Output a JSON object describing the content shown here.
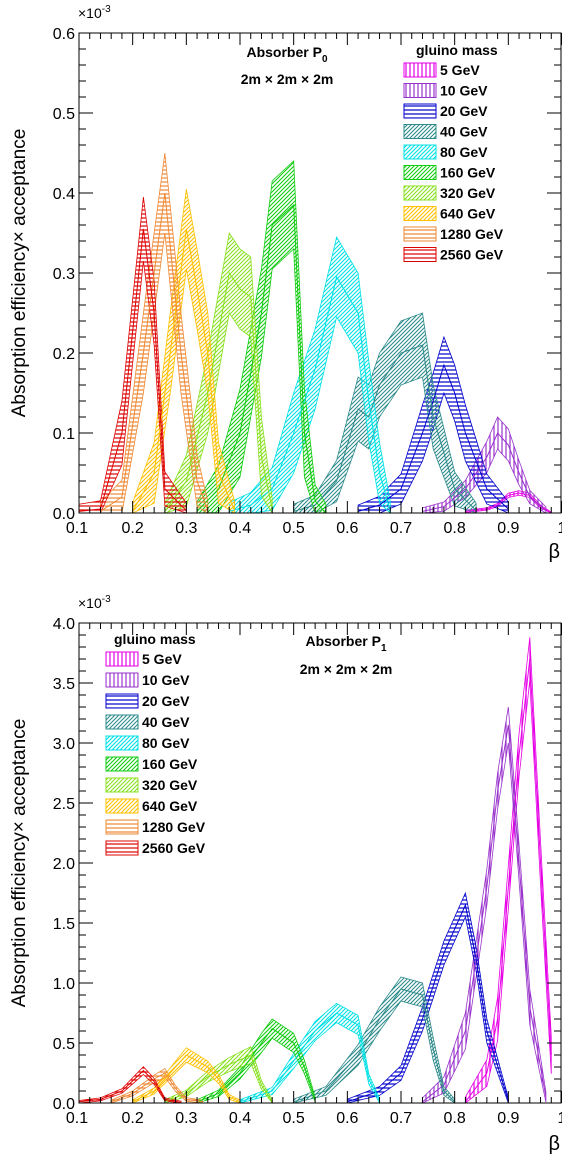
{
  "chart_data": [
    {
      "type": "area",
      "title": "Absorber P0",
      "title_main": "Absorber P",
      "title_sub": "0",
      "subtitle": "2m × 2m × 2m",
      "xlabel": "β",
      "ylabel": "Absorption efficiency× acceptance",
      "y_exponent": "×10",
      "y_exponent_power": "-3",
      "xlim": [
        0.1,
        1.0
      ],
      "ylim": [
        0.0,
        0.6
      ],
      "x_ticks": [
        "0.1",
        "0.2",
        "0.3",
        "0.4",
        "0.5",
        "0.6",
        "0.7",
        "0.8",
        "0.9",
        "1"
      ],
      "y_ticks": [
        "0.0",
        "0.1",
        "0.2",
        "0.3",
        "0.4",
        "0.5",
        "0.6"
      ],
      "legend_title": "gluino mass",
      "legend_position": "top-right",
      "series": [
        {
          "name": "5 GeV",
          "color": "#e600e6",
          "pattern": "vertical",
          "points": [
            [
              0.82,
              0.002
            ],
            [
              0.86,
              0.005
            ],
            [
              0.88,
              0.01
            ],
            [
              0.9,
              0.022
            ],
            [
              0.92,
              0.025
            ],
            [
              0.94,
              0.022
            ],
            [
              0.96,
              0.008
            ],
            [
              0.98,
              0.0
            ]
          ],
          "band": 0.006
        },
        {
          "name": "10 GeV",
          "color": "#9933cc",
          "pattern": "vertical",
          "points": [
            [
              0.74,
              0.002
            ],
            [
              0.78,
              0.008
            ],
            [
              0.82,
              0.03
            ],
            [
              0.86,
              0.07
            ],
            [
              0.88,
              0.1
            ],
            [
              0.9,
              0.085
            ],
            [
              0.92,
              0.05
            ],
            [
              0.94,
              0.02
            ],
            [
              0.97,
              0.003
            ]
          ],
          "band": 0.02
        },
        {
          "name": "20 GeV",
          "color": "#0000cc",
          "pattern": "horizontal",
          "points": [
            [
              0.62,
              0.002
            ],
            [
              0.66,
              0.01
            ],
            [
              0.7,
              0.03
            ],
            [
              0.74,
              0.1
            ],
            [
              0.76,
              0.14
            ],
            [
              0.78,
              0.185
            ],
            [
              0.8,
              0.15
            ],
            [
              0.82,
              0.1
            ],
            [
              0.86,
              0.03
            ],
            [
              0.9,
              0.005
            ]
          ],
          "band": 0.035
        },
        {
          "name": "40 GeV",
          "color": "#2e8b8b",
          "pattern": "diagonal",
          "points": [
            [
              0.5,
              0.002
            ],
            [
              0.54,
              0.01
            ],
            [
              0.58,
              0.04
            ],
            [
              0.62,
              0.13
            ],
            [
              0.64,
              0.12
            ],
            [
              0.66,
              0.16
            ],
            [
              0.7,
              0.2
            ],
            [
              0.74,
              0.21
            ],
            [
              0.76,
              0.12
            ],
            [
              0.8,
              0.03
            ],
            [
              0.84,
              0.003
            ]
          ],
          "band": 0.04
        },
        {
          "name": "80 GeV",
          "color": "#00e0e6",
          "pattern": "diagonal",
          "points": [
            [
              0.38,
              0.002
            ],
            [
              0.42,
              0.01
            ],
            [
              0.46,
              0.03
            ],
            [
              0.5,
              0.1
            ],
            [
              0.54,
              0.18
            ],
            [
              0.58,
              0.295
            ],
            [
              0.62,
              0.25
            ],
            [
              0.64,
              0.14
            ],
            [
              0.66,
              0.05
            ],
            [
              0.68,
              0.003
            ]
          ],
          "band": 0.05
        },
        {
          "name": "160 GeV",
          "color": "#11cc11",
          "pattern": "diagonal",
          "points": [
            [
              0.32,
              0.002
            ],
            [
              0.36,
              0.03
            ],
            [
              0.4,
              0.1
            ],
            [
              0.44,
              0.25
            ],
            [
              0.46,
              0.36
            ],
            [
              0.5,
              0.385
            ],
            [
              0.52,
              0.1
            ],
            [
              0.54,
              0.015
            ],
            [
              0.56,
              0.0
            ]
          ],
          "band": 0.055
        },
        {
          "name": "320 GeV",
          "color": "#88e020",
          "pattern": "diagonal",
          "points": [
            [
              0.26,
              0.002
            ],
            [
              0.3,
              0.04
            ],
            [
              0.34,
              0.15
            ],
            [
              0.38,
              0.3
            ],
            [
              0.4,
              0.28
            ],
            [
              0.42,
              0.27
            ],
            [
              0.44,
              0.07
            ],
            [
              0.46,
              0.005
            ]
          ],
          "band": 0.05
        },
        {
          "name": "640 GeV",
          "color": "#ffc000",
          "pattern": "diagonal",
          "points": [
            [
              0.2,
              0.002
            ],
            [
              0.24,
              0.05
            ],
            [
              0.27,
              0.2
            ],
            [
              0.3,
              0.355
            ],
            [
              0.32,
              0.28
            ],
            [
              0.34,
              0.2
            ],
            [
              0.36,
              0.05
            ],
            [
              0.39,
              0.003
            ]
          ],
          "band": 0.05
        },
        {
          "name": "1280 GeV",
          "color": "#ee8833",
          "pattern": "horizontal",
          "points": [
            [
              0.14,
              0.002
            ],
            [
              0.18,
              0.02
            ],
            [
              0.22,
              0.2
            ],
            [
              0.26,
              0.4
            ],
            [
              0.29,
              0.2
            ],
            [
              0.32,
              0.04
            ],
            [
              0.34,
              0.003
            ]
          ],
          "band": 0.05
        },
        {
          "name": "2560 GeV",
          "color": "#dd0000",
          "pattern": "horizontal",
          "points": [
            [
              0.1,
              0.002
            ],
            [
              0.14,
              0.005
            ],
            [
              0.18,
              0.1
            ],
            [
              0.22,
              0.355
            ],
            [
              0.24,
              0.25
            ],
            [
              0.26,
              0.03
            ],
            [
              0.3,
              0.003
            ]
          ],
          "band": 0.04
        }
      ]
    },
    {
      "type": "area",
      "title": "Absorber P1",
      "title_main": "Absorber P",
      "title_sub": "1",
      "subtitle": "2m × 2m × 2m",
      "xlabel": "β",
      "ylabel": "Absorption efficiency× acceptance",
      "y_exponent": "×10",
      "y_exponent_power": "-3",
      "xlim": [
        0.1,
        1.0
      ],
      "ylim": [
        0.0,
        4.0
      ],
      "x_ticks": [
        "0.1",
        "0.2",
        "0.3",
        "0.4",
        "0.5",
        "0.6",
        "0.7",
        "0.8",
        "0.9",
        "1"
      ],
      "y_ticks": [
        "0.0",
        "0.5",
        "1.0",
        "1.5",
        "2.0",
        "2.5",
        "3.0",
        "3.5",
        "4.0"
      ],
      "legend_title": "gluino mass",
      "legend_position": "top-left",
      "series": [
        {
          "name": "5 GeV",
          "color": "#e600e6",
          "pattern": "vertical",
          "points": [
            [
              0.82,
              0.01
            ],
            [
              0.86,
              0.25
            ],
            [
              0.88,
              0.7
            ],
            [
              0.9,
              1.8
            ],
            [
              0.92,
              2.9
            ],
            [
              0.94,
              3.7
            ],
            [
              0.96,
              2.0
            ],
            [
              0.98,
              0.4
            ]
          ],
          "band": 0.18
        },
        {
          "name": "10 GeV",
          "color": "#9933cc",
          "pattern": "vertical",
          "points": [
            [
              0.74,
              0.01
            ],
            [
              0.78,
              0.15
            ],
            [
              0.82,
              0.6
            ],
            [
              0.86,
              1.8
            ],
            [
              0.88,
              2.6
            ],
            [
              0.9,
              3.15
            ],
            [
              0.92,
              2.0
            ],
            [
              0.94,
              0.8
            ],
            [
              0.97,
              0.05
            ]
          ],
          "band": 0.15
        },
        {
          "name": "20 GeV",
          "color": "#0000cc",
          "pattern": "horizontal",
          "points": [
            [
              0.6,
              0.01
            ],
            [
              0.66,
              0.1
            ],
            [
              0.7,
              0.25
            ],
            [
              0.74,
              0.7
            ],
            [
              0.78,
              1.25
            ],
            [
              0.82,
              1.65
            ],
            [
              0.84,
              1.2
            ],
            [
              0.86,
              0.6
            ],
            [
              0.9,
              0.02
            ]
          ],
          "band": 0.1
        },
        {
          "name": "40 GeV",
          "color": "#2e8b8b",
          "pattern": "diagonal",
          "points": [
            [
              0.5,
              0.01
            ],
            [
              0.56,
              0.1
            ],
            [
              0.62,
              0.4
            ],
            [
              0.66,
              0.7
            ],
            [
              0.7,
              0.95
            ],
            [
              0.74,
              0.9
            ],
            [
              0.76,
              0.45
            ],
            [
              0.78,
              0.1
            ],
            [
              0.8,
              0.01
            ]
          ],
          "band": 0.1
        },
        {
          "name": "80 GeV",
          "color": "#00e0e6",
          "pattern": "diagonal",
          "points": [
            [
              0.4,
              0.01
            ],
            [
              0.46,
              0.1
            ],
            [
              0.5,
              0.35
            ],
            [
              0.54,
              0.6
            ],
            [
              0.58,
              0.75
            ],
            [
              0.62,
              0.65
            ],
            [
              0.64,
              0.2
            ],
            [
              0.66,
              0.02
            ]
          ],
          "band": 0.08
        },
        {
          "name": "160 GeV",
          "color": "#11cc11",
          "pattern": "diagonal",
          "points": [
            [
              0.32,
              0.01
            ],
            [
              0.36,
              0.08
            ],
            [
              0.4,
              0.25
            ],
            [
              0.44,
              0.5
            ],
            [
              0.46,
              0.62
            ],
            [
              0.5,
              0.5
            ],
            [
              0.52,
              0.3
            ],
            [
              0.54,
              0.03
            ]
          ],
          "band": 0.08
        },
        {
          "name": "320 GeV",
          "color": "#88e020",
          "pattern": "diagonal",
          "points": [
            [
              0.26,
              0.01
            ],
            [
              0.3,
              0.08
            ],
            [
              0.34,
              0.22
            ],
            [
              0.38,
              0.32
            ],
            [
              0.42,
              0.4
            ],
            [
              0.44,
              0.15
            ],
            [
              0.46,
              0.01
            ]
          ],
          "band": 0.08
        },
        {
          "name": "640 GeV",
          "color": "#ffc000",
          "pattern": "diagonal",
          "points": [
            [
              0.2,
              0.01
            ],
            [
              0.24,
              0.1
            ],
            [
              0.27,
              0.25
            ],
            [
              0.3,
              0.4
            ],
            [
              0.34,
              0.3
            ],
            [
              0.36,
              0.2
            ],
            [
              0.38,
              0.05
            ],
            [
              0.4,
              0.01
            ]
          ],
          "band": 0.07
        },
        {
          "name": "1280 GeV",
          "color": "#ee8833",
          "pattern": "horizontal",
          "points": [
            [
              0.16,
              0.01
            ],
            [
              0.2,
              0.08
            ],
            [
              0.24,
              0.2
            ],
            [
              0.26,
              0.25
            ],
            [
              0.28,
              0.12
            ],
            [
              0.3,
              0.03
            ],
            [
              0.33,
              0.01
            ]
          ],
          "band": 0.06
        },
        {
          "name": "2560 GeV",
          "color": "#dd0000",
          "pattern": "horizontal",
          "points": [
            [
              0.1,
              0.01
            ],
            [
              0.14,
              0.03
            ],
            [
              0.18,
              0.1
            ],
            [
              0.22,
              0.27
            ],
            [
              0.24,
              0.18
            ],
            [
              0.26,
              0.03
            ],
            [
              0.29,
              0.005
            ]
          ],
          "band": 0.05
        }
      ]
    }
  ]
}
